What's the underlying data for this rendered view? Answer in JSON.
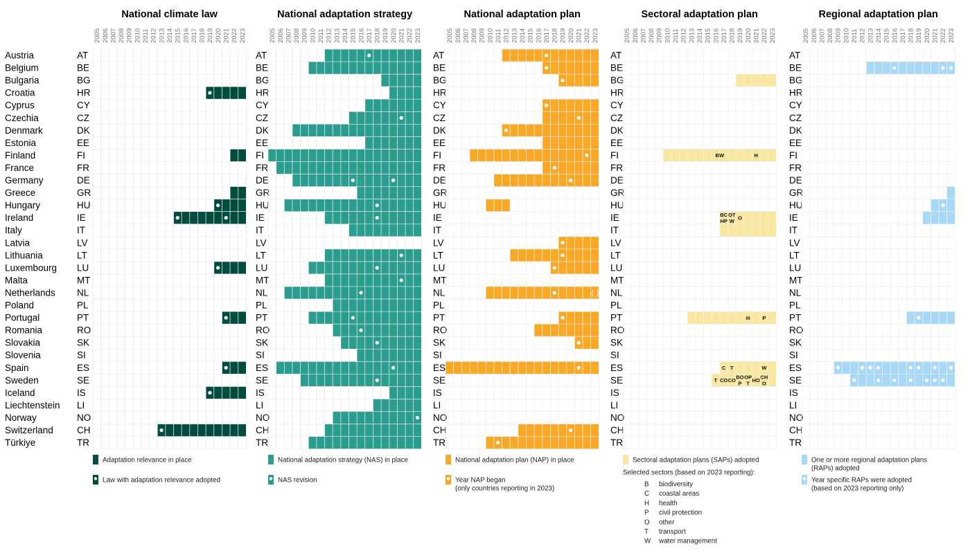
{
  "years": [
    "2005",
    "2006",
    "2007",
    "2008",
    "2009",
    "2010",
    "2011",
    "2012",
    "2013",
    "2014",
    "2015",
    "2016",
    "2017",
    "2018",
    "2019",
    "2020",
    "2021",
    "2022",
    "2023"
  ],
  "countries": [
    {
      "name": "Austria",
      "code": "AT"
    },
    {
      "name": "Belgium",
      "code": "BE"
    },
    {
      "name": "Bulgaria",
      "code": "BG"
    },
    {
      "name": "Croatia",
      "code": "HR"
    },
    {
      "name": "Cyprus",
      "code": "CY"
    },
    {
      "name": "Czechia",
      "code": "CZ"
    },
    {
      "name": "Denmark",
      "code": "DK"
    },
    {
      "name": "Estonia",
      "code": "EE"
    },
    {
      "name": "Finland",
      "code": "FI"
    },
    {
      "name": "France",
      "code": "FR"
    },
    {
      "name": "Germany",
      "code": "DE"
    },
    {
      "name": "Greece",
      "code": "GR"
    },
    {
      "name": "Hungary",
      "code": "HU"
    },
    {
      "name": "Ireland",
      "code": "IE"
    },
    {
      "name": "Italy",
      "code": "IT"
    },
    {
      "name": "Latvia",
      "code": "LV"
    },
    {
      "name": "Lithuania",
      "code": "LT"
    },
    {
      "name": "Luxembourg",
      "code": "LU"
    },
    {
      "name": "Malta",
      "code": "MT"
    },
    {
      "name": "Netherlands",
      "code": "NL"
    },
    {
      "name": "Poland",
      "code": "PL"
    },
    {
      "name": "Portugal",
      "code": "PT"
    },
    {
      "name": "Romania",
      "code": "RO"
    },
    {
      "name": "Slovakia",
      "code": "SK"
    },
    {
      "name": "Slovenia",
      "code": "SI"
    },
    {
      "name": "Spain",
      "code": "ES"
    },
    {
      "name": "Sweden",
      "code": "SE"
    },
    {
      "name": "Iceland",
      "code": "IS"
    },
    {
      "name": "Liechtenstein",
      "code": "LI"
    },
    {
      "name": "Norway",
      "code": "NO"
    },
    {
      "name": "Switzerland",
      "code": "CH"
    },
    {
      "name": "Türkiye",
      "code": "TR"
    }
  ],
  "chart_data": {
    "type": "heatmap",
    "panels": [
      {
        "title": "National climate law",
        "color": "#004d40",
        "bars": {
          "HR": 2019,
          "FI": 2022,
          "GR": 2022,
          "HU": 2020,
          "IE": 2015,
          "LU": 2020,
          "PT": 2021,
          "ES": 2021,
          "IS": 2019,
          "CH": 2013
        },
        "dots": {
          "HR": [
            2019
          ],
          "HU": [
            2020
          ],
          "IE": [
            2015,
            2021
          ],
          "LU": [
            2020
          ],
          "PT": [
            2021
          ],
          "ES": [
            2021
          ],
          "IS": [
            2019
          ],
          "CH": [
            2013
          ]
        },
        "legend": [
          {
            "kind": "square",
            "label": "Adaptation relevance in place"
          },
          {
            "kind": "dot",
            "label": "Law with adaptation relevance adopted"
          }
        ]
      },
      {
        "title": "National adaptation strategy",
        "color": "#2a9d8f",
        "bars": {
          "AT": 2012,
          "BE": 2010,
          "BG": 2019,
          "HR": 2020,
          "CY": 2017,
          "CZ": 2015,
          "DK": 2008,
          "EE": 2017,
          "FI": 2005,
          "FR": 2006,
          "DE": 2008,
          "GR": 2016,
          "HU": 2007,
          "IE": 2012,
          "IT": 2015,
          "LT": 2012,
          "LU": 2010,
          "MT": 2012,
          "NL": 2007,
          "PL": 2013,
          "PT": 2010,
          "RO": 2013,
          "SK": 2014,
          "SI": 2016,
          "ES": 2006,
          "SE": 2009,
          "IS": 2020,
          "LI": 2018,
          "NO": 2013,
          "CH": 2012,
          "TR": 2010
        },
        "dots": {
          "AT": [
            2017
          ],
          "CZ": [
            2021
          ],
          "DE": [
            2015,
            2020
          ],
          "HU": [
            2018
          ],
          "IE": [
            2018
          ],
          "LT": [
            2021
          ],
          "LU": [
            2018
          ],
          "MT": [
            2021
          ],
          "NL": [
            2016
          ],
          "PT": [
            2015
          ],
          "RO": [
            2016
          ],
          "SK": [
            2018
          ],
          "ES": [
            2020
          ],
          "SE": [
            2018
          ],
          "NO": [
            2023
          ]
        },
        "legend": [
          {
            "kind": "square",
            "label": "National adaptation strategy (NAS) in place"
          },
          {
            "kind": "dot",
            "label": "NAS revision"
          }
        ]
      },
      {
        "title": "National adaptation plan",
        "color": "#f9a825",
        "bars": {
          "AT": 2012,
          "BE": 2017,
          "BG": 2019,
          "CY": 2017,
          "CZ": 2017,
          "DK": 2012,
          "EE": 2017,
          "FI": 2008,
          "FR": 2017,
          "DE": 2011,
          "HU": [
            [
              2010,
              2012
            ]
          ],
          "LV": 2019,
          "LT": 2013,
          "LU": 2018,
          "NL": 2010,
          "PT": 2019,
          "RO": 2016,
          "SK": 2021,
          "ES": 2005,
          "CH": 2014,
          "TR": 2010
        },
        "dots": {
          "AT": [
            2017
          ],
          "BE": [
            2017
          ],
          "BG": [
            2019
          ],
          "CY": [
            2017
          ],
          "CZ": [
            2021
          ],
          "DK": [
            2012
          ],
          "FI": [
            2022
          ],
          "FR": [
            2018
          ],
          "DE": [
            2020
          ],
          "LV": [
            2019
          ],
          "LT": [
            2019
          ],
          "LU": [
            2018
          ],
          "NL": [
            2018
          ],
          "PT": [
            2019
          ],
          "SK": [
            2021
          ],
          "ES": [
            2021
          ],
          "CH": [
            2020
          ],
          "TR": [
            2011
          ]
        },
        "nl_paren_year": 2023,
        "legend": [
          {
            "kind": "square",
            "label": "National adaptation plan (NAP) in place"
          },
          {
            "kind": "dot",
            "label": "Year NAP began"
          },
          {
            "kind": "sub",
            "label": "(only countries reporting in 2023)"
          }
        ]
      },
      {
        "title": "Sectoral adaptation plan",
        "color": "#f9e79f",
        "bars": {
          "BG": 2019,
          "FI": 2010,
          "IE": 2017,
          "IT": 2017,
          "PT": 2013,
          "ES": 2017,
          "SE": 2016
        },
        "sectors": [
          {
            "code": "FI",
            "year": 2016.5,
            "line": 0,
            "text": "BW"
          },
          {
            "code": "FI",
            "year": 2021,
            "line": 0,
            "text": "H"
          },
          {
            "code": "IE",
            "year": 2017,
            "line": -1,
            "text": "BC"
          },
          {
            "code": "IE",
            "year": 2018,
            "line": -1,
            "text": "OT"
          },
          {
            "code": "IE",
            "year": 2017,
            "line": 1,
            "text": "HP"
          },
          {
            "code": "IE",
            "year": 2018,
            "line": 1,
            "text": "W"
          },
          {
            "code": "IE",
            "year": 2019,
            "line": 0,
            "text": "O"
          },
          {
            "code": "PT",
            "year": 2020,
            "line": 0,
            "text": "H"
          },
          {
            "code": "PT",
            "year": 2022,
            "line": 0,
            "text": "P"
          },
          {
            "code": "ES",
            "year": 2017,
            "line": 0,
            "text": "C"
          },
          {
            "code": "ES",
            "year": 2018,
            "line": 0,
            "text": "T"
          },
          {
            "code": "ES",
            "year": 2022,
            "line": 0,
            "text": "W"
          },
          {
            "code": "SE",
            "year": 2016,
            "line": 0,
            "text": "T"
          },
          {
            "code": "SE",
            "year": 2017,
            "line": 0,
            "text": "CO"
          },
          {
            "code": "SE",
            "year": 2018,
            "line": 0,
            "text": "CO"
          },
          {
            "code": "SE",
            "year": 2019,
            "line": -1,
            "text": "BO"
          },
          {
            "code": "SE",
            "year": 2019,
            "line": 1,
            "text": "P"
          },
          {
            "code": "SE",
            "year": 2020,
            "line": -1,
            "text": "OP"
          },
          {
            "code": "SE",
            "year": 2020,
            "line": 1,
            "text": "T"
          },
          {
            "code": "SE",
            "year": 2021,
            "line": 0,
            "text": "HO"
          },
          {
            "code": "SE",
            "year": 2022,
            "line": -1,
            "text": "CH"
          },
          {
            "code": "SE",
            "year": 2022,
            "line": 1,
            "text": "O"
          }
        ],
        "legend": [
          {
            "kind": "square",
            "label": "Sectoral adaptation plans (SAPs) adopted"
          },
          {
            "kind": "text",
            "label": "Selected sectors (based on 2023 reporting):"
          }
        ],
        "sector_key": [
          {
            "letter": "B",
            "name": "biodiversity"
          },
          {
            "letter": "C",
            "name": "coastal areas"
          },
          {
            "letter": "H",
            "name": "health"
          },
          {
            "letter": "P",
            "name": "civil protection"
          },
          {
            "letter": "O",
            "name": "other"
          },
          {
            "letter": "T",
            "name": "transport"
          },
          {
            "letter": "W",
            "name": "water management"
          }
        ]
      },
      {
        "title": "Regional adaptation plan",
        "color": "#a8d8f8",
        "bars": {
          "BE": 2013,
          "GR": 2023,
          "HU": 2021,
          "IE": 2020,
          "PT": 2018,
          "ES": 2009,
          "SE": 2011
        },
        "dots": {
          "BE": [
            2016,
            2022,
            2023
          ],
          "HU": [
            2022
          ],
          "PT": [
            2019
          ],
          "ES": [
            2009,
            2012,
            2013,
            2014,
            2018,
            2019,
            2021,
            2023
          ],
          "SE": [
            2011,
            2014,
            2016,
            2018,
            2020,
            2021,
            2022
          ]
        },
        "legend": [
          {
            "kind": "square",
            "label": "One or more regional adaptation plans"
          },
          {
            "kind": "sub",
            "label": "(RAPs) adopted"
          },
          {
            "kind": "dot",
            "label": "Year specific RAPs were adopted"
          },
          {
            "kind": "sub",
            "label": "(based on 2023 reporting only)"
          }
        ]
      }
    ]
  }
}
